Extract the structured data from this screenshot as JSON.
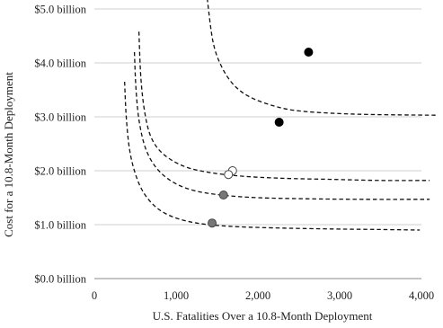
{
  "chart_data": {
    "type": "scatter",
    "title": "",
    "xlabel": "U.S. Fatalities Over a 10.8-Month Deployment",
    "ylabel": "Cost for a 10.8-Month Deployment",
    "xlim": [
      0,
      4000
    ],
    "ylim": [
      0,
      5
    ],
    "x_ticks": [
      {
        "value": 0,
        "label": "0"
      },
      {
        "value": 1000,
        "label": "1,000"
      },
      {
        "value": 2000,
        "label": "2,000"
      },
      {
        "value": 3000,
        "label": "3,000"
      },
      {
        "value": 4000,
        "label": "4,000"
      }
    ],
    "y_ticks": [
      {
        "value": 0,
        "label": "$0.0 billion"
      },
      {
        "value": 1,
        "label": "$1.0 billion"
      },
      {
        "value": 2,
        "label": "$2.0 billion"
      },
      {
        "value": 3,
        "label": "$3.0 billion"
      },
      {
        "value": 4,
        "label": "$4.0 billion"
      },
      {
        "value": 5,
        "label": "$5.0 billion"
      }
    ],
    "grid": {
      "horizontal": true,
      "vertical": false
    },
    "colors": {
      "black": "#000000",
      "gray": "#777777",
      "hollow": "#ffffff",
      "curve": "#111111",
      "grid": "#cfcfcf"
    },
    "points": [
      {
        "x": 2620,
        "y": 4.2,
        "style": "black"
      },
      {
        "x": 2260,
        "y": 2.9,
        "style": "black"
      },
      {
        "x": 1690,
        "y": 2.0,
        "style": "hollow"
      },
      {
        "x": 1640,
        "y": 1.93,
        "style": "hollow"
      },
      {
        "x": 1580,
        "y": 1.55,
        "style": "gray"
      },
      {
        "x": 1440,
        "y": 1.03,
        "style": "gray"
      }
    ],
    "curves": [
      {
        "style": "dashed",
        "points": [
          [
            1380,
            5.2
          ],
          [
            1450,
            4.4
          ],
          [
            1550,
            3.95
          ],
          [
            1700,
            3.6
          ],
          [
            1900,
            3.37
          ],
          [
            2200,
            3.2
          ],
          [
            2500,
            3.11
          ],
          [
            3000,
            3.06
          ],
          [
            3500,
            3.04
          ],
          [
            4200,
            3.03
          ]
        ]
      },
      {
        "style": "dashed",
        "points": [
          [
            545,
            4.58
          ],
          [
            570,
            3.7
          ],
          [
            620,
            3.05
          ],
          [
            700,
            2.6
          ],
          [
            850,
            2.3
          ],
          [
            1100,
            2.08
          ],
          [
            1400,
            1.97
          ],
          [
            1800,
            1.9
          ],
          [
            2300,
            1.86
          ],
          [
            2900,
            1.84
          ],
          [
            3500,
            1.82
          ],
          [
            4100,
            1.82
          ]
        ]
      },
      {
        "style": "dashed",
        "points": [
          [
            490,
            4.2
          ],
          [
            510,
            3.5
          ],
          [
            550,
            2.9
          ],
          [
            630,
            2.4
          ],
          [
            760,
            2.05
          ],
          [
            950,
            1.8
          ],
          [
            1200,
            1.64
          ],
          [
            1550,
            1.55
          ],
          [
            2000,
            1.5
          ],
          [
            2600,
            1.48
          ],
          [
            3300,
            1.47
          ],
          [
            4100,
            1.47
          ]
        ]
      },
      {
        "style": "dashed",
        "points": [
          [
            370,
            3.65
          ],
          [
            390,
            3.0
          ],
          [
            430,
            2.4
          ],
          [
            500,
            1.95
          ],
          [
            600,
            1.6
          ],
          [
            750,
            1.33
          ],
          [
            950,
            1.15
          ],
          [
            1250,
            1.03
          ],
          [
            1650,
            0.97
          ],
          [
            2200,
            0.94
          ],
          [
            2900,
            0.92
          ],
          [
            3500,
            0.91
          ],
          [
            3980,
            0.9
          ]
        ]
      }
    ]
  }
}
